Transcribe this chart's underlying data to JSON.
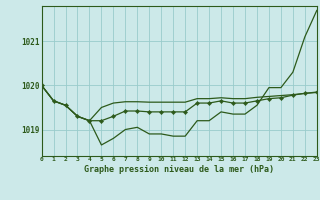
{
  "title": "Graphe pression niveau de la mer (hPa)",
  "background_color": "#cce9e9",
  "grid_color": "#99cccc",
  "line_color": "#2d5a1b",
  "xlim": [
    0,
    23
  ],
  "ylim": [
    1018.4,
    1021.8
  ],
  "yticks": [
    1019,
    1020,
    1021
  ],
  "xtick_labels": [
    "0",
    "1",
    "2",
    "3",
    "4",
    "5",
    "6",
    "7",
    "8",
    "9",
    "10",
    "11",
    "12",
    "13",
    "14",
    "15",
    "16",
    "17",
    "18",
    "19",
    "20",
    "21",
    "22",
    "23"
  ],
  "series": {
    "steep": [
      1020.0,
      1019.65,
      1019.55,
      1019.3,
      1019.2,
      1018.65,
      1018.8,
      1019.0,
      1019.05,
      1018.9,
      1018.9,
      1018.85,
      1018.85,
      1019.2,
      1019.2,
      1019.4,
      1019.35,
      1019.35,
      1019.55,
      1019.95,
      1019.95,
      1020.3,
      1021.1,
      1021.7
    ],
    "middle": [
      1020.0,
      1019.65,
      1019.55,
      1019.3,
      1019.2,
      1019.2,
      1019.3,
      1019.42,
      1019.42,
      1019.4,
      1019.4,
      1019.4,
      1019.4,
      1019.6,
      1019.6,
      1019.65,
      1019.6,
      1019.6,
      1019.65,
      1019.7,
      1019.72,
      1019.78,
      1019.82,
      1019.85
    ],
    "flat": [
      1020.0,
      1019.65,
      1019.55,
      1019.3,
      1019.2,
      1019.5,
      1019.6,
      1019.63,
      1019.63,
      1019.62,
      1019.62,
      1019.62,
      1019.62,
      1019.7,
      1019.7,
      1019.72,
      1019.7,
      1019.7,
      1019.73,
      1019.75,
      1019.77,
      1019.79,
      1019.82,
      1019.84
    ]
  }
}
